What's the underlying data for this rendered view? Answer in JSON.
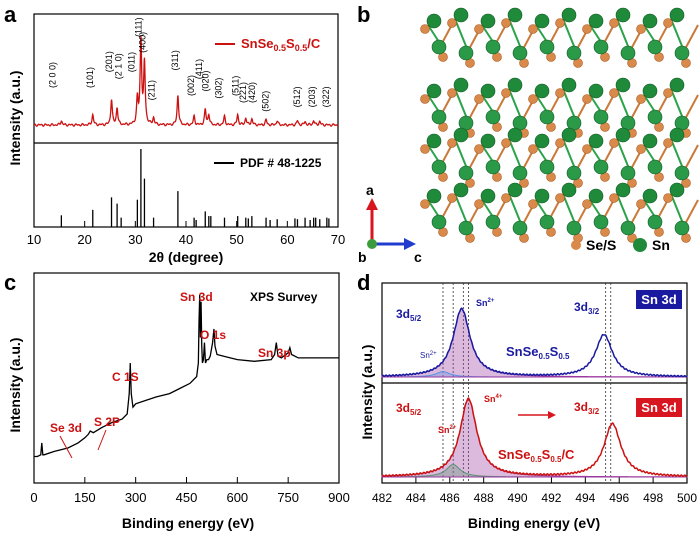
{
  "panels": {
    "a": {
      "letter": "a",
      "legend_top": "SnSe0.5S0.5/C",
      "legend_bottom": "PDF # 48-1225",
      "xlabel": "2θ (degree)",
      "ylabel": "Intensity (a.u.)"
    },
    "b": {
      "letter": "b",
      "axis_a": "a",
      "axis_b": "b",
      "axis_c": "c",
      "legend_se": "Se/S",
      "legend_sn": "Sn"
    },
    "c": {
      "letter": "c",
      "title": "XPS Survey",
      "xlabel": "Binding energy (eV)",
      "ylabel": "Intensity (a.u.)"
    },
    "d": {
      "letter": "d",
      "xlabel": "Binding energy (eV)",
      "ylabel": "Intensity (a.u.)",
      "top_label": "Sn 3d",
      "bottom_label": "Sn 3d",
      "top_sample": "SnSe0.5S0.5",
      "bottom_sample": "SnSe0.5S0.5/C"
    }
  },
  "colors": {
    "xrd": "#cc1111",
    "survey": "#000000",
    "top_xps": "#1a1aa0",
    "bottom_xps": "#cc1111",
    "se": "#d98a4a",
    "sn": "#1f8a3a"
  },
  "chart_data": [
    {
      "type": "line",
      "title": "",
      "xlabel": "2θ (degree)",
      "ylabel": "Intensity (a.u.)",
      "xlim": [
        10,
        70
      ],
      "xticks": [
        10,
        20,
        30,
        40,
        50,
        60,
        70
      ],
      "series": [
        {
          "name": "SnSe0.5S0.5/C",
          "peaks": [
            {
              "x": 15.4,
              "h": 0.05
            },
            {
              "x": 21.6,
              "h": 0.12
            },
            {
              "x": 25.3,
              "h": 0.3
            },
            {
              "x": 26.4,
              "h": 0.2
            },
            {
              "x": 30.4,
              "h": 0.3
            },
            {
              "x": 31.1,
              "h": 1.0
            },
            {
              "x": 31.8,
              "h": 0.72
            },
            {
              "x": 33.6,
              "h": 0.08
            },
            {
              "x": 38.4,
              "h": 0.35
            },
            {
              "x": 41.6,
              "h": 0.1
            },
            {
              "x": 43.8,
              "h": 0.18
            },
            {
              "x": 44.5,
              "h": 0.12
            },
            {
              "x": 47.6,
              "h": 0.1
            },
            {
              "x": 50.2,
              "h": 0.12
            },
            {
              "x": 51.8,
              "h": 0.08
            },
            {
              "x": 53.0,
              "h": 0.07
            },
            {
              "x": 55.8,
              "h": 0.06
            },
            {
              "x": 58.0,
              "h": 0.05
            },
            {
              "x": 62.0,
              "h": 0.05
            },
            {
              "x": 63.5,
              "h": 0.04
            },
            {
              "x": 65.2,
              "h": 0.05
            },
            {
              "x": 66.4,
              "h": 0.04
            }
          ]
        }
      ],
      "peak_labels": [
        {
          "x": 14.2,
          "label": "(2 0 0)",
          "lv": 0.42
        },
        {
          "x": 21.6,
          "label": "(101)",
          "lv": 0.42
        },
        {
          "x": 25.4,
          "label": "(201)",
          "lv": 0.6
        },
        {
          "x": 27.3,
          "label": "(2 1 0)",
          "lv": 0.52
        },
        {
          "x": 29.8,
          "label": "(011)",
          "lv": 0.6
        },
        {
          "x": 31.2,
          "label": "(111)",
          "lv": 1.0
        },
        {
          "x": 32.0,
          "label": "(400)",
          "lv": 0.82
        },
        {
          "x": 33.8,
          "label": "(211)",
          "lv": 0.28
        },
        {
          "x": 38.4,
          "label": "(311)",
          "lv": 0.62
        },
        {
          "x": 41.6,
          "label": "(002)",
          "lv": 0.33
        },
        {
          "x": 43.2,
          "label": "(411)",
          "lv": 0.52
        },
        {
          "x": 44.4,
          "label": "(020)",
          "lv": 0.38
        },
        {
          "x": 47.0,
          "label": "(302)",
          "lv": 0.3
        },
        {
          "x": 50.4,
          "label": "(511)",
          "lv": 0.33
        },
        {
          "x": 51.8,
          "label": "(221)",
          "lv": 0.25
        },
        {
          "x": 53.6,
          "label": "(420)",
          "lv": 0.25
        },
        {
          "x": 56.3,
          "label": "(502)",
          "lv": 0.15
        },
        {
          "x": 62.5,
          "label": "(512)",
          "lv": 0.2
        },
        {
          "x": 65.5,
          "label": "(203)",
          "lv": 0.2
        },
        {
          "x": 68.2,
          "label": "(322)",
          "lv": 0.2
        }
      ]
    },
    {
      "type": "bar",
      "title": "",
      "xlabel": "2θ (degree)",
      "series": [
        {
          "name": "PDF # 48-1225",
          "x": [
            15.4,
            21.6,
            25.3,
            26.4,
            27.2,
            30.4,
            31.1,
            31.8,
            33.6,
            38.4,
            41.6,
            42.0,
            43.8,
            44.5,
            44.9,
            47.6,
            50.2,
            51.8,
            52.3,
            53.0,
            55.8,
            56.6,
            58.0,
            61.5,
            62.0,
            63.5,
            64.5,
            65.2,
            65.6,
            66.4,
            67.8,
            68.2
          ],
          "values": [
            0.15,
            0.22,
            0.38,
            0.3,
            0.12,
            0.35,
            1.0,
            0.62,
            0.12,
            0.46,
            0.12,
            0.09,
            0.2,
            0.14,
            0.14,
            0.12,
            0.14,
            0.12,
            0.11,
            0.14,
            0.12,
            0.09,
            0.1,
            0.11,
            0.1,
            0.12,
            0.09,
            0.12,
            0.12,
            0.1,
            0.12,
            0.11
          ]
        }
      ]
    },
    {
      "type": "line",
      "title": "XPS Survey",
      "xlabel": "Binding energy (eV)",
      "ylabel": "Intensity (a.u.)",
      "xlim": [
        0,
        900
      ],
      "xticks": [
        0,
        150,
        300,
        450,
        600,
        750,
        900
      ],
      "series": [
        {
          "name": "",
          "x": [
            0,
            10,
            20,
            23,
            26,
            30,
            60,
            100,
            130,
            150,
            160,
            166,
            175,
            200,
            230,
            260,
            275,
            281,
            284,
            287,
            292,
            300,
            330,
            360,
            400,
            430,
            460,
            480,
            485,
            487,
            489,
            491,
            493,
            495,
            497,
            500,
            503,
            506,
            510,
            515,
            520,
            527,
            531,
            534,
            540,
            560,
            600,
            650,
            700,
            710,
            715,
            720,
            730,
            750,
            755,
            760,
            780,
            820,
            860,
            880,
            900
          ],
          "values": [
            0.05,
            0.05,
            0.06,
            0.13,
            0.06,
            0.06,
            0.08,
            0.1,
            0.13,
            0.16,
            0.18,
            0.2,
            0.19,
            0.22,
            0.25,
            0.27,
            0.3,
            0.42,
            0.6,
            0.42,
            0.34,
            0.36,
            0.38,
            0.4,
            0.42,
            0.45,
            0.48,
            0.52,
            0.6,
            0.85,
            1.0,
            0.75,
            0.96,
            0.7,
            0.6,
            0.62,
            0.72,
            0.6,
            0.62,
            0.62,
            0.64,
            0.72,
            0.8,
            0.7,
            0.65,
            0.64,
            0.62,
            0.61,
            0.62,
            0.65,
            0.72,
            0.64,
            0.63,
            0.66,
            0.69,
            0.65,
            0.63,
            0.63,
            0.63,
            0.63,
            0.63
          ]
        }
      ],
      "annotations": [
        {
          "x": 55,
          "label": "Se 3d"
        },
        {
          "x": 163,
          "label": "S 2P"
        },
        {
          "x": 284,
          "label": "C 1S"
        },
        {
          "x": 487,
          "label": "Sn 3d"
        },
        {
          "x": 531,
          "label": "O 1s"
        },
        {
          "x": 715,
          "label": "Sn 3p"
        }
      ]
    },
    {
      "type": "line",
      "title": "",
      "xlabel": "Binding energy (eV)",
      "ylabel": "Intensity (a.u.)",
      "xlim": [
        482,
        500
      ],
      "xticks": [
        482,
        484,
        486,
        488,
        490,
        492,
        494,
        496,
        498,
        500
      ],
      "series": [
        {
          "name": "SnSe0.5S0.5",
          "peaks": [
            {
              "x": 486.7,
              "w": 0.6,
              "h": 1.0
            },
            {
              "x": 495.1,
              "w": 0.6,
              "h": 0.62
            }
          ],
          "fits": [
            {
              "x": 485.6,
              "w": 0.5,
              "h": 0.08,
              "color": "#3ac0ff"
            },
            {
              "x": 486.7,
              "w": 0.6,
              "h": 1.0,
              "color": "#9c3aa0"
            }
          ]
        },
        {
          "name": "SnSe0.5S0.5/C",
          "peaks": [
            {
              "x": 487.1,
              "w": 0.6,
              "h": 1.0
            },
            {
              "x": 495.6,
              "w": 0.6,
              "h": 0.68
            }
          ],
          "fits": [
            {
              "x": 486.2,
              "w": 0.5,
              "h": 0.16,
              "color": "#3ac05a"
            },
            {
              "x": 487.1,
              "w": 0.6,
              "h": 1.0,
              "color": "#9c3aa0"
            }
          ]
        }
      ],
      "annotations": [
        {
          "label": "3d5/2"
        },
        {
          "label": "3d3/2"
        },
        {
          "label": "Sn2+"
        },
        {
          "label": "Sn4+"
        }
      ],
      "vlines": [
        485.6,
        486.2,
        486.8,
        487.1,
        495.2,
        495.5
      ]
    }
  ]
}
